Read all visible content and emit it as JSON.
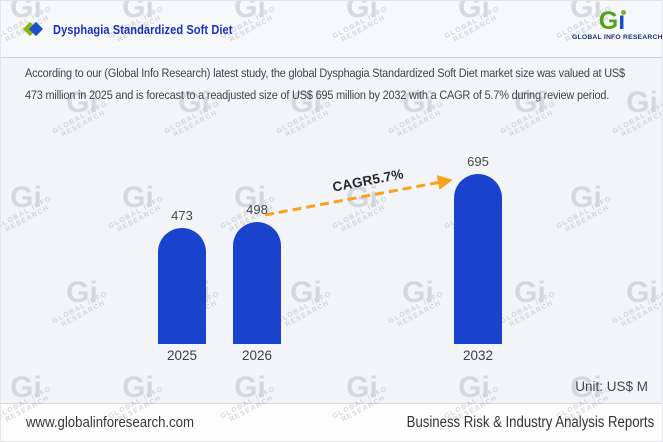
{
  "header": {
    "title": "Dysphagia Standardized Soft Diet",
    "logo_mark_g": "G",
    "logo_mark_i": "ı",
    "logo_name": "GLOBAL INFO RESEARCH"
  },
  "summary": {
    "text": "According to our (Global Info Research) latest study, the global Dysphagia Standardized Soft Diet market size was valued at US$ 473 million in 2025 and is forecast to a readjusted size of US$ 695 million by 2032 with a CAGR of 5.7% during review period."
  },
  "chart_data": {
    "type": "bar",
    "categories": [
      "2025",
      "2026",
      "2032"
    ],
    "values": [
      473,
      498,
      695
    ],
    "title": "",
    "xlabel": "",
    "ylabel": "",
    "unit_label": "Unit: US$ M",
    "cagr_label": "CAGR5.7%",
    "bar_color": "#1a43cd",
    "arrow_color": "#f9a21b",
    "value_label_color": "#46494f",
    "ylim": [
      0,
      760
    ],
    "grid": false,
    "legend": false,
    "annotations": [
      "CAGR5.7%"
    ]
  },
  "footer": {
    "website": "www.globalinforesearch.com",
    "tagline": "Business Risk & Industry Analysis Reports"
  },
  "watermark": {
    "mark": "Gi",
    "text": "GLOBAL INFO RESEARCH"
  }
}
